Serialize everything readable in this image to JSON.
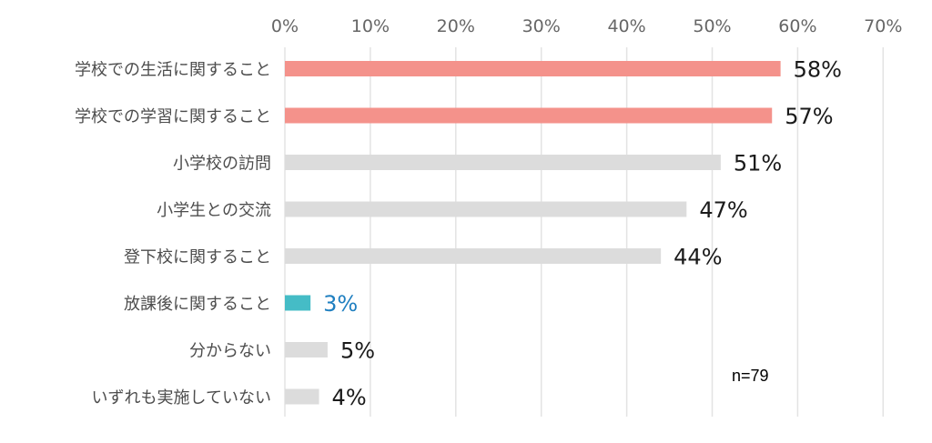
{
  "chart_data": {
    "type": "bar",
    "orientation": "horizontal",
    "categories": [
      "学校での生活に関すること",
      "学校での学習に関すること",
      "小学校の訪問",
      "小学生との交流",
      "登下校に関すること",
      "放課後に関すること",
      "分からない",
      "いずれも実施していない"
    ],
    "values": [
      58,
      57,
      51,
      47,
      44,
      3,
      5,
      4
    ],
    "value_labels": [
      "58%",
      "57%",
      "51%",
      "47%",
      "44%",
      "3%",
      "5%",
      "4%"
    ],
    "x_ticks": [
      "0%",
      "10%",
      "20%",
      "30%",
      "40%",
      "50%",
      "60%",
      "70%"
    ],
    "xlim": [
      0,
      70
    ],
    "x_axis_position": "top",
    "grid": true,
    "annotation": "n=79",
    "colors": {
      "highlight": "#f4928b",
      "default": "#dcdcdc",
      "accent": "#45bcc6",
      "accent_label": "#1f7fc0",
      "label": "#1a1a1a",
      "grid": "#e3e3e3"
    },
    "bar_colors": [
      "highlight",
      "highlight",
      "default",
      "default",
      "default",
      "accent",
      "default",
      "default"
    ]
  }
}
